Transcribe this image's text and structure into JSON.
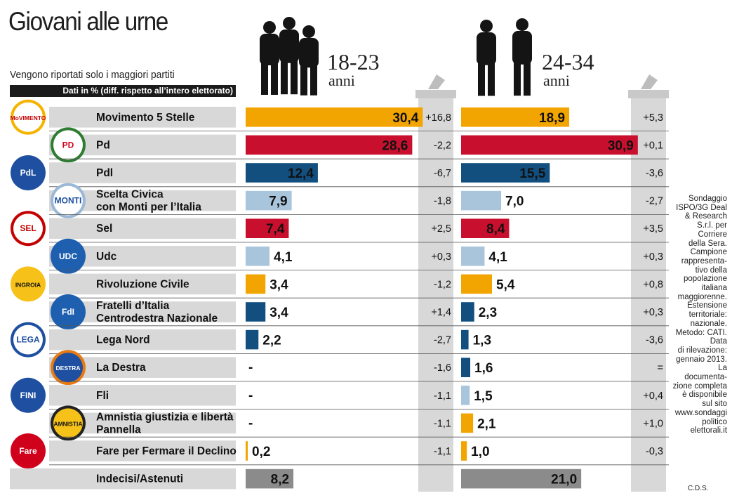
{
  "header": {
    "title": "Giovani alle urne",
    "subtitle": "Vengono riportati solo i maggiori partiti",
    "data_note": "Dati in % (diff. rispetto all’intero elettorato)"
  },
  "groups": [
    {
      "age": "18-23",
      "unit": "anni"
    },
    {
      "age": "24-34",
      "unit": "anni"
    }
  ],
  "logos": [
    {
      "party": "Movimento 5 Stelle",
      "text": "MoVIMENTO",
      "fg": "#c40000",
      "bg": "#ffffff",
      "ring": "#f5b400"
    },
    {
      "party": "Pd",
      "text": "PD",
      "fg": "#d0021b",
      "bg": "#ffffff",
      "ring": "#2e7d32"
    },
    {
      "party": "Pdl",
      "text": "PdL",
      "fg": "#ffffff",
      "bg": "#1e4fa0",
      "ring": "#1e4fa0"
    },
    {
      "party": "Scelta Civica",
      "text": "MONTI",
      "fg": "#1e4fa0",
      "bg": "#ffffff",
      "ring": "#9bb8d6"
    },
    {
      "party": "Sel",
      "text": "SEL",
      "fg": "#c40000",
      "bg": "#ffffff",
      "ring": "#c40000"
    },
    {
      "party": "Udc",
      "text": "UDC",
      "fg": "#ffffff",
      "bg": "#1e5fb0",
      "ring": "#1e5fb0"
    },
    {
      "party": "Rivoluzione Civile",
      "text": "INGROIA",
      "fg": "#111111",
      "bg": "#f6c21a",
      "ring": "#f6c21a"
    },
    {
      "party": "Fratelli d'Italia",
      "text": "FdI",
      "fg": "#ffffff",
      "bg": "#1e5fb0",
      "ring": "#1e5fb0"
    },
    {
      "party": "Lega Nord",
      "text": "LEGA",
      "fg": "#1e4fa0",
      "bg": "#ffffff",
      "ring": "#1e4fa0"
    },
    {
      "party": "La Destra",
      "text": "DESTRA",
      "fg": "#ffffff",
      "bg": "#1e4fa0",
      "ring": "#e87a12"
    },
    {
      "party": "Fli",
      "text": "FINI",
      "fg": "#ffffff",
      "bg": "#1e4fa0",
      "ring": "#1e4fa0"
    },
    {
      "party": "Amnistia",
      "text": "AMNISTIA",
      "fg": "#111111",
      "bg": "#f6c21a",
      "ring": "#222222"
    },
    {
      "party": "Fare",
      "text": "Fare",
      "fg": "#ffffff",
      "bg": "#d0021b",
      "ring": "#d0021b"
    }
  ],
  "colors": {
    "orange": "#f2a400",
    "red": "#c8102e",
    "navy": "#124f7e",
    "lightblue": "#a9c5dc",
    "gray": "#8b8b8b",
    "diff_column": "#d8d8d8",
    "row_band": "#d8d8d8",
    "rule": "#555555"
  },
  "methodology": "Sondaggio ISPO/3G Deal & Research S.r.l. per Corriere della Sera. Campione rappresentativo della popolazione italiana maggiorenne. Estensione territoriale: nazionale. Metodo: CATI. Data di rilevazione: gennaio 2013. La documentazione completa è disponibile sul sito www.sondaggipoliticoelettorali.it",
  "methodology_lines": [
    "Sondaggio",
    "ISPO/3G Deal",
    "& Research",
    "S.r.l. per",
    "Corriere",
    "della Sera.",
    "Campione",
    "rappresenta-",
    "tivo della",
    "popolazione",
    "italiana",
    "maggiorenne.",
    "Estensione",
    "territoriale:",
    "nazionale.",
    "Metodo: CATI.",
    "Data",
    "di rilevazione:",
    "gennaio 2013.",
    "La",
    "documenta-",
    "zione completa",
    "è disponibile",
    "sul sito",
    "www.sondaggi",
    "politico",
    "elettorali.it"
  ],
  "credit": "C.D.S.",
  "chart_data": {
    "type": "bar",
    "orientation": "horizontal",
    "title": "Giovani alle urne",
    "xlim": [
      0,
      32
    ],
    "categories": [
      "Movimento 5 Stelle",
      "Pd",
      "Pdl",
      "Scelta Civica\ncon Monti per l’Italia",
      "Sel",
      "Udc",
      "Rivoluzione Civile",
      "Fratelli d’Italia\nCentrodestra Nazionale",
      "Lega Nord",
      "La Destra",
      "Fli",
      "Amnistia giustizia e libertà\nPannella",
      "Fare per Fermare il Declino",
      "Indecisi/Astenuti"
    ],
    "series": [
      {
        "name": "18-23 anni",
        "values": [
          30.4,
          28.6,
          12.4,
          7.9,
          7.4,
          4.1,
          3.4,
          3.4,
          2.2,
          null,
          null,
          null,
          0.2,
          8.2
        ],
        "labels": [
          "30,4",
          "28,6",
          "12,4",
          "7,9",
          "7,4",
          "4,1",
          "3,4",
          "3,4",
          "2,2",
          "-",
          "-",
          "-",
          "0,2",
          "8,2"
        ],
        "diffs": [
          "+16,8",
          "-2,2",
          "-6,7",
          "-1,8",
          "+2,5",
          "+0,3",
          "-1,2",
          "+1,4",
          "-2,7",
          "-1,6",
          "-1,1",
          "-1,1",
          "-1,1",
          ""
        ]
      },
      {
        "name": "24-34 anni",
        "values": [
          18.9,
          30.9,
          15.5,
          7.0,
          8.4,
          4.1,
          5.4,
          2.3,
          1.3,
          1.6,
          1.5,
          2.1,
          1.0,
          21.0
        ],
        "labels": [
          "18,9",
          "30,9",
          "15,5",
          "7,0",
          "8,4",
          "4,1",
          "5,4",
          "2,3",
          "1,3",
          "1,6",
          "1,5",
          "2,1",
          "1,0",
          "21,0"
        ],
        "diffs": [
          "+5,3",
          "+0,1",
          "-3,6",
          "-2,7",
          "+3,5",
          "+0,3",
          "+0,8",
          "+0,3",
          "-3,6",
          "=",
          "+0,4",
          "+1,0",
          "-0,3",
          ""
        ]
      }
    ],
    "bar_colors": [
      "orange",
      "red",
      "navy",
      "lightblue",
      "red",
      "lightblue",
      "orange",
      "navy",
      "navy",
      "navy",
      "lightblue",
      "orange",
      "orange",
      "gray"
    ]
  }
}
